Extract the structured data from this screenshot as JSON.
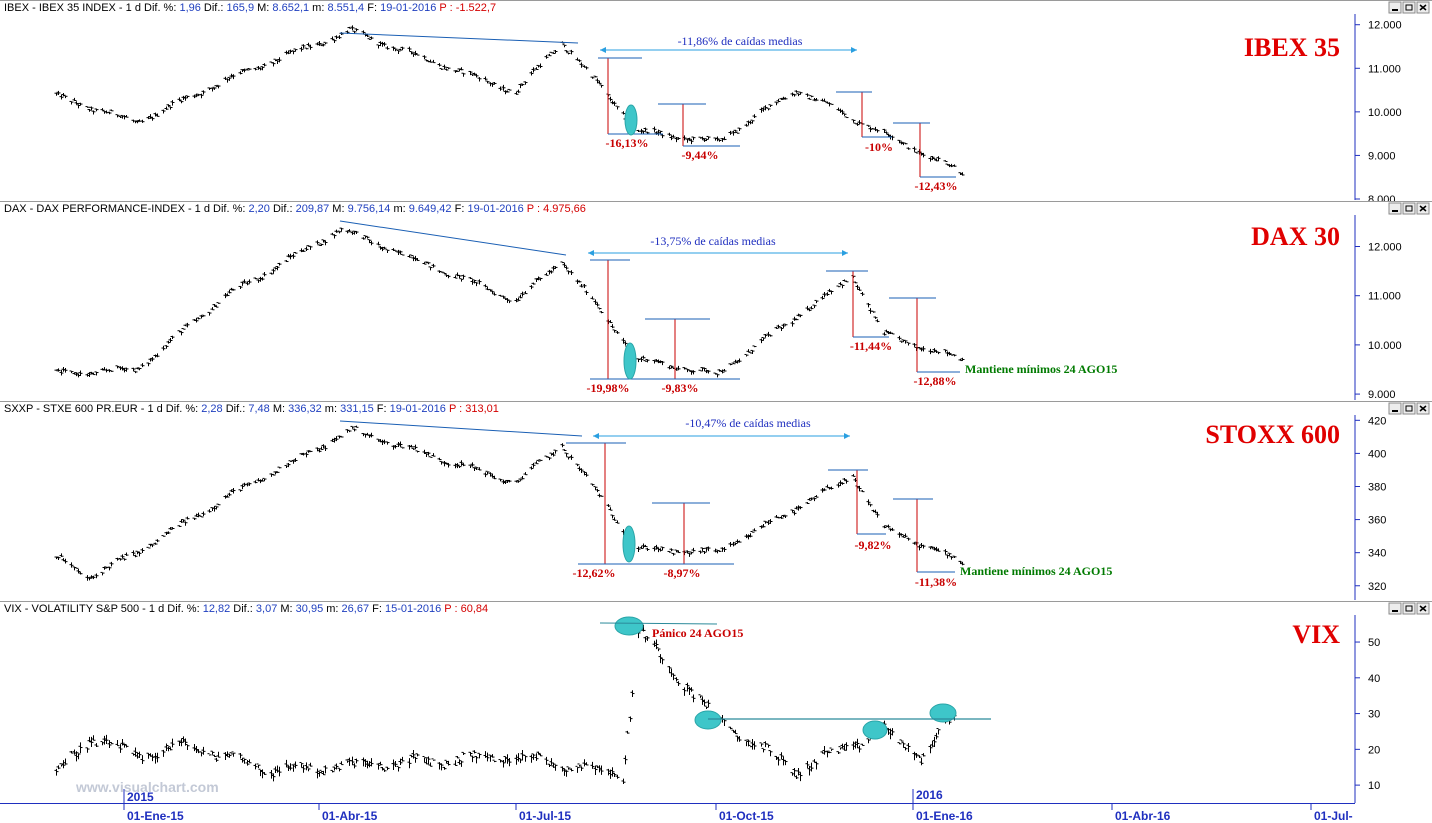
{
  "watermark": "www.visualchart.com",
  "colors": {
    "header_label": "#000000",
    "header_value": "#1f3fbf",
    "header_profit": "#d40000",
    "price": "#000000",
    "trendline": "#1a5fb4",
    "drop": "#c80000",
    "ellipse": "#3ec6c9",
    "note": "#007a00",
    "axis": "#1f2fbf",
    "big_label": "#e00000"
  },
  "window_buttons": [
    "minimize-icon",
    "restore-icon",
    "close-icon"
  ],
  "time_axis": {
    "year_labels": [
      "2015",
      "2016"
    ],
    "date_labels": [
      "01-Ene-15",
      "01-Abr-15",
      "01-Jul-15",
      "01-Oct-15",
      "01-Ene-16",
      "01-Abr-16",
      "01-Jul-"
    ]
  },
  "panels": [
    {
      "id": "ibex",
      "header": [
        {
          "text": "IBEX - IBEX 35 INDEX - 1 d Dif. %:",
          "role": "label"
        },
        {
          "text": "1,96",
          "role": "value"
        },
        {
          "text": "Dif.:",
          "role": "label"
        },
        {
          "text": "165,9",
          "role": "value"
        },
        {
          "text": "M:",
          "role": "label"
        },
        {
          "text": "8.652,1",
          "role": "value"
        },
        {
          "text": "m:",
          "role": "label"
        },
        {
          "text": "8.551,4",
          "role": "value"
        },
        {
          "text": "F:",
          "role": "label"
        },
        {
          "text": "19-01-2016",
          "role": "value"
        },
        {
          "text": "P :",
          "role": "profit"
        },
        {
          "text": "-1.522,7",
          "role": "profit"
        }
      ],
      "big_label": "IBEX 35",
      "y_ticks": [
        "12.000",
        "11.000",
        "10.000",
        "9.000",
        "8.000"
      ],
      "banner": "-11,86% de caídas medias",
      "drops": [
        "-16,13%",
        "-9,44%",
        "-10%",
        "-12,43%"
      ],
      "note": ""
    },
    {
      "id": "dax",
      "header": [
        {
          "text": "DAX - DAX PERFORMANCE-INDEX - 1 d Dif. %:",
          "role": "label"
        },
        {
          "text": "2,20",
          "role": "value"
        },
        {
          "text": "Dif.:",
          "role": "label"
        },
        {
          "text": "209,87",
          "role": "value"
        },
        {
          "text": "M:",
          "role": "label"
        },
        {
          "text": "9.756,14",
          "role": "value"
        },
        {
          "text": "m:",
          "role": "label"
        },
        {
          "text": "9.649,42",
          "role": "value"
        },
        {
          "text": "F:",
          "role": "label"
        },
        {
          "text": "19-01-2016",
          "role": "value"
        },
        {
          "text": "P :",
          "role": "profit"
        },
        {
          "text": "4.975,66",
          "role": "profit"
        }
      ],
      "big_label": "DAX 30",
      "y_ticks": [
        "12.000",
        "11.000",
        "10.000",
        "9.000"
      ],
      "banner": "-13,75% de caídas medias",
      "drops": [
        "-19,98%",
        "-9,83%",
        "-11,44%",
        "-12,88%"
      ],
      "note": "Mantiene mínimos 24 AGO15"
    },
    {
      "id": "stoxx",
      "header": [
        {
          "text": "SXXP - STXE 600 PR.EUR - 1 d Dif. %:",
          "role": "label"
        },
        {
          "text": "2,28",
          "role": "value"
        },
        {
          "text": "Dif.:",
          "role": "label"
        },
        {
          "text": "7,48",
          "role": "value"
        },
        {
          "text": "M:",
          "role": "label"
        },
        {
          "text": "336,32",
          "role": "value"
        },
        {
          "text": "m:",
          "role": "label"
        },
        {
          "text": "331,15",
          "role": "value"
        },
        {
          "text": "F:",
          "role": "label"
        },
        {
          "text": "19-01-2016",
          "role": "value"
        },
        {
          "text": "P :",
          "role": "profit"
        },
        {
          "text": "313,01",
          "role": "profit"
        }
      ],
      "big_label": "STOXX 600",
      "y_ticks": [
        "420",
        "400",
        "380",
        "360",
        "340",
        "320"
      ],
      "banner": "-10,47% de caídas medias",
      "drops": [
        "-12,62%",
        "-8,97%",
        "-9,82%",
        "-11,38%"
      ],
      "note": "Mantiene mínimos 24 AGO15"
    },
    {
      "id": "vix",
      "header": [
        {
          "text": "VIX - VOLATILITY S&P 500 - 1 d Dif. %:",
          "role": "label"
        },
        {
          "text": "12,82",
          "role": "value"
        },
        {
          "text": "Dif.:",
          "role": "label"
        },
        {
          "text": "3,07",
          "role": "value"
        },
        {
          "text": "M:",
          "role": "label"
        },
        {
          "text": "30,95",
          "role": "value"
        },
        {
          "text": "m:",
          "role": "label"
        },
        {
          "text": "26,67",
          "role": "value"
        },
        {
          "text": "F:",
          "role": "label"
        },
        {
          "text": "15-01-2016",
          "role": "value"
        },
        {
          "text": "P :",
          "role": "profit"
        },
        {
          "text": "60,84",
          "role": "profit"
        }
      ],
      "big_label": "VIX",
      "y_ticks": [
        "50",
        "40",
        "30",
        "20",
        "10"
      ],
      "banner": "",
      "drops": [],
      "note": "Pánico 24 AGO15"
    }
  ],
  "chart_data": [
    {
      "type": "ohlc",
      "series": [
        {
          "name": "IBEX 35",
          "key_points": [
            {
              "date": "2014-12-01",
              "value": 10350
            },
            {
              "date": "2015-01-07",
              "value": 9750
            },
            {
              "date": "2015-02-15",
              "value": 10700
            },
            {
              "date": "2015-04-14",
              "value": 11850
            },
            {
              "date": "2015-06-29",
              "value": 10450
            },
            {
              "date": "2015-07-20",
              "value": 11600
            },
            {
              "date": "2015-08-24",
              "value": 9550
            },
            {
              "date": "2015-09-29",
              "value": 9300
            },
            {
              "date": "2015-11-04",
              "value": 10500
            },
            {
              "date": "2015-12-14",
              "value": 9500
            },
            {
              "date": "2016-01-19",
              "value": 8600
            }
          ]
        }
      ],
      "ylim": [
        8000,
        12200
      ]
    },
    {
      "type": "ohlc",
      "series": [
        {
          "name": "DAX 30",
          "key_points": [
            {
              "date": "2014-12-01",
              "value": 9400
            },
            {
              "date": "2015-01-07",
              "value": 9500
            },
            {
              "date": "2015-02-15",
              "value": 10950
            },
            {
              "date": "2015-04-10",
              "value": 12350
            },
            {
              "date": "2015-06-29",
              "value": 10900
            },
            {
              "date": "2015-07-20",
              "value": 11700
            },
            {
              "date": "2015-08-24",
              "value": 9700
            },
            {
              "date": "2015-09-29",
              "value": 9400
            },
            {
              "date": "2015-11-30",
              "value": 11400
            },
            {
              "date": "2015-12-14",
              "value": 10200
            },
            {
              "date": "2016-01-19",
              "value": 9700
            }
          ]
        }
      ],
      "ylim": [
        8900,
        12600
      ]
    },
    {
      "type": "ohlc",
      "series": [
        {
          "name": "STOXX 600",
          "key_points": [
            {
              "date": "2014-12-01",
              "value": 337
            },
            {
              "date": "2014-12-16",
              "value": 325
            },
            {
              "date": "2015-01-07",
              "value": 340
            },
            {
              "date": "2015-02-15",
              "value": 372
            },
            {
              "date": "2015-04-15",
              "value": 414
            },
            {
              "date": "2015-06-29",
              "value": 382
            },
            {
              "date": "2015-07-20",
              "value": 405
            },
            {
              "date": "2015-08-24",
              "value": 342
            },
            {
              "date": "2015-09-29",
              "value": 340
            },
            {
              "date": "2015-11-30",
              "value": 386
            },
            {
              "date": "2015-12-14",
              "value": 355
            },
            {
              "date": "2016-01-19",
              "value": 334
            }
          ]
        }
      ],
      "ylim": [
        312,
        422
      ]
    },
    {
      "type": "ohlc",
      "series": [
        {
          "name": "VIX",
          "key_points": [
            {
              "date": "2014-12-01",
              "value": 13
            },
            {
              "date": "2014-12-16",
              "value": 23
            },
            {
              "date": "2015-01-07",
              "value": 18
            },
            {
              "date": "2015-01-30",
              "value": 21
            },
            {
              "date": "2015-03-11",
              "value": 14
            },
            {
              "date": "2015-06-29",
              "value": 18
            },
            {
              "date": "2015-08-17",
              "value": 13
            },
            {
              "date": "2015-08-24",
              "value": 53
            },
            {
              "date": "2015-09-29",
              "value": 28
            },
            {
              "date": "2015-11-04",
              "value": 14
            },
            {
              "date": "2015-12-14",
              "value": 25
            },
            {
              "date": "2015-12-31",
              "value": 18
            },
            {
              "date": "2016-01-15",
              "value": 29
            }
          ]
        }
      ],
      "ylim": [
        5,
        57
      ],
      "reference_level": 29
    }
  ]
}
